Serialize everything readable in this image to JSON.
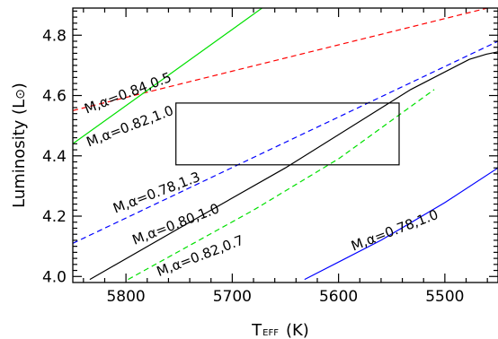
{
  "chart_data": {
    "type": "line",
    "xlabel": "T",
    "xlabel_sub": "EFF",
    "xlabel_unit": "(K)",
    "ylabel": "Luminosity (L",
    "ylabel_sym": "⊙",
    "ylabel_close": ")",
    "xlim": [
      5850,
      5450
    ],
    "ylim": [
      3.98,
      4.89
    ],
    "xticks": [
      5800,
      5700,
      5600,
      5500
    ],
    "xtick_labels": [
      "5800",
      "5700",
      "5600",
      "5500"
    ],
    "yticks": [
      4.0,
      4.2,
      4.4,
      4.6,
      4.8
    ],
    "ytick_labels": [
      "4.0",
      "4.2",
      "4.4",
      "4.6",
      "4.8"
    ],
    "grid": false,
    "legend": "none",
    "box": {
      "x": [
        5753,
        5543
      ],
      "y": [
        4.37,
        4.575
      ],
      "color": "#000000"
    },
    "series": [
      {
        "label": "M,α=0.84,0.5",
        "color": "#ff0000",
        "dash": true,
        "x": [
          5850,
          5460
        ],
        "y": [
          4.55,
          4.89
        ],
        "label_at": [
          5837,
          4.54
        ],
        "label_angle": -21
      },
      {
        "label": "M,α=0.82,1.0",
        "color": "#00e000",
        "dash": false,
        "x": [
          5850,
          5672
        ],
        "y": [
          4.44,
          4.89
        ],
        "label_at": [
          5835,
          4.43
        ],
        "label_angle": -21
      },
      {
        "label": "M,α=0.78,1.3",
        "color": "#0000ff",
        "dash": true,
        "x": [
          5850,
          5450
        ],
        "y": [
          4.11,
          4.78
        ],
        "label_at": [
          5810,
          4.21
        ],
        "label_angle": -21
      },
      {
        "label": "M,α=0.80,1.0",
        "color": "#000000",
        "dash": false,
        "x": [
          5834,
          5745,
          5650,
          5573,
          5532,
          5477,
          5461,
          5450
        ],
        "y": [
          3.99,
          4.17,
          4.36,
          4.53,
          4.62,
          4.72,
          4.737,
          4.745
        ],
        "label_at": [
          5792,
          4.105
        ],
        "label_angle": -21
      },
      {
        "label": "M,α=0.82,0.7",
        "color": "#00e000",
        "dash": true,
        "x": [
          5798,
          5680,
          5600,
          5510
        ],
        "y": [
          3.99,
          4.22,
          4.39,
          4.62
        ],
        "label_at": [
          5769,
          4.0
        ],
        "label_angle": -21
      },
      {
        "label": "M,α=0.78,1.0",
        "color": "#0000ff",
        "dash": false,
        "x": [
          5632,
          5560,
          5500,
          5450
        ],
        "y": [
          3.99,
          4.12,
          4.245,
          4.36
        ],
        "label_at": [
          5586,
          4.085
        ],
        "label_angle": -21
      }
    ]
  }
}
